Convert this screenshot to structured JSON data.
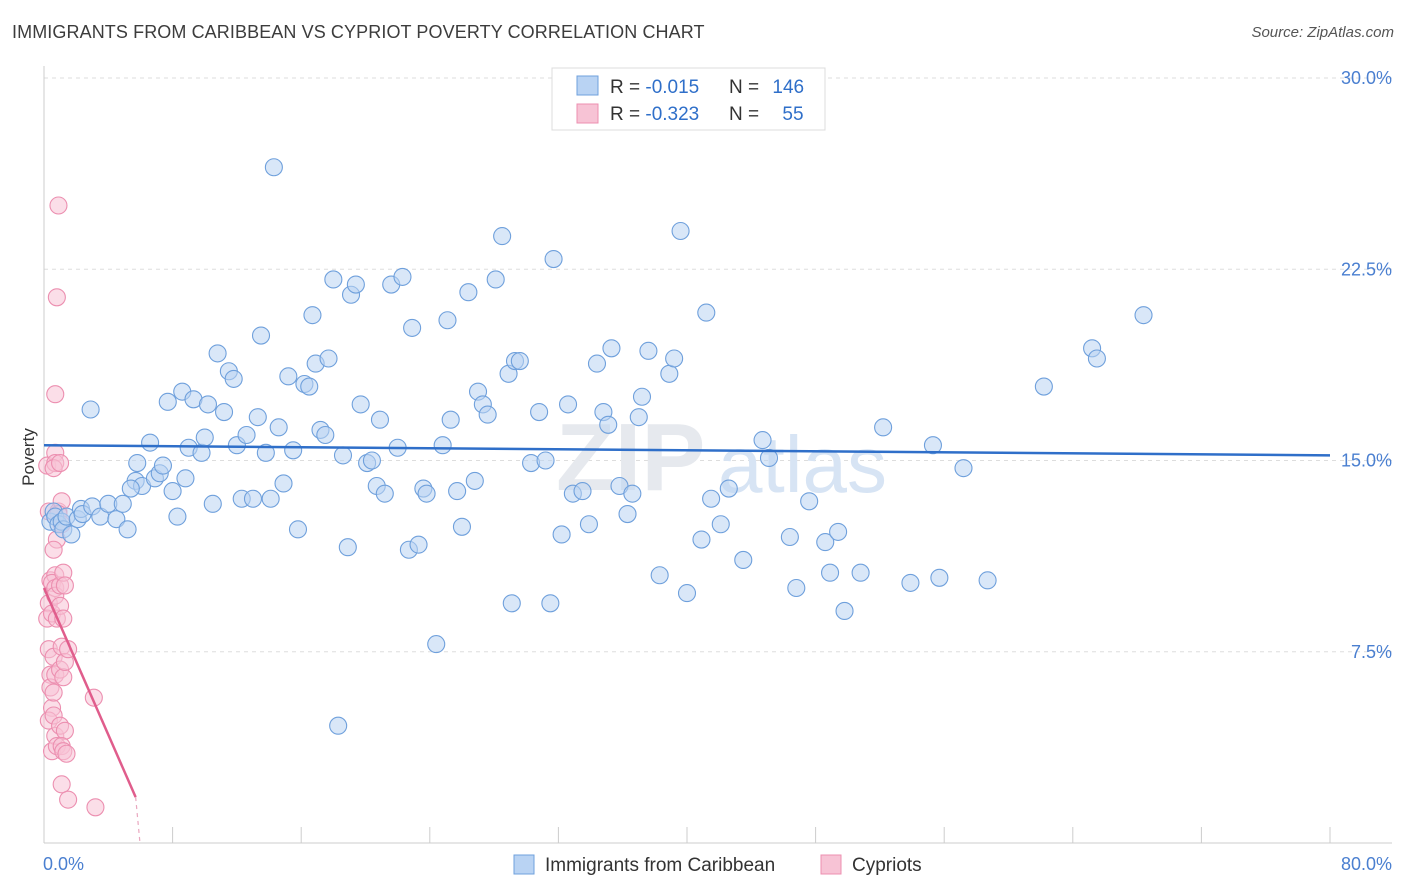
{
  "title": "IMMIGRANTS FROM CARIBBEAN VS CYPRIOT POVERTY CORRELATION CHART",
  "source": "Source: ZipAtlas.com",
  "watermark": {
    "zip": "ZIP",
    "atlas": "atlas"
  },
  "colors": {
    "blue": "#6fa0dc",
    "blue_fill": "#b9d3f3",
    "blue_line": "#2f6fc9",
    "pink": "#ec8fb0",
    "pink_fill": "#f7c3d5",
    "pink_line": "#e05d8c",
    "axis_text": "#4a7fd0"
  },
  "legend": {
    "rows": [
      {
        "r_label": "R = ",
        "r_value": "-0.015",
        "n_label": "N = ",
        "n_value": "146"
      },
      {
        "r_label": "R = ",
        "r_value": "-0.323",
        "n_label": "N = ",
        "n_value": "55"
      }
    ]
  },
  "chart_data": {
    "type": "scatter",
    "xlabel": "",
    "ylabel": "Poverty",
    "xlim": [
      0,
      80
    ],
    "ylim": [
      0,
      30
    ],
    "x_tick_labels": [
      "0.0%",
      "80.0%"
    ],
    "y_ticks": [
      7.5,
      15.0,
      22.5,
      30.0
    ],
    "y_tick_labels": [
      "7.5%",
      "15.0%",
      "22.5%",
      "30.0%"
    ],
    "grid": true,
    "legend_position": "bottom-center",
    "series": [
      {
        "name": "Immigrants from Caribbean",
        "trend": {
          "x": [
            0,
            80
          ],
          "y": [
            15.6,
            15.2
          ]
        },
        "points": [
          [
            0.4,
            12.6
          ],
          [
            0.6,
            13.0
          ],
          [
            0.7,
            12.8
          ],
          [
            0.9,
            12.5
          ],
          [
            1.1,
            12.6
          ],
          [
            1.2,
            12.3
          ],
          [
            1.4,
            12.8
          ],
          [
            1.7,
            12.1
          ],
          [
            2.1,
            12.7
          ],
          [
            2.3,
            13.1
          ],
          [
            2.4,
            12.9
          ],
          [
            3.0,
            13.2
          ],
          [
            3.5,
            12.8
          ],
          [
            2.9,
            17.0
          ],
          [
            4.0,
            13.3
          ],
          [
            4.5,
            12.7
          ],
          [
            4.9,
            13.3
          ],
          [
            5.2,
            12.3
          ],
          [
            5.7,
            14.2
          ],
          [
            5.8,
            14.9
          ],
          [
            6.1,
            14.0
          ],
          [
            6.6,
            15.7
          ],
          [
            6.9,
            14.3
          ],
          [
            7.2,
            14.5
          ],
          [
            7.4,
            14.8
          ],
          [
            5.4,
            13.9
          ],
          [
            8.0,
            13.8
          ],
          [
            7.7,
            17.3
          ],
          [
            8.3,
            12.8
          ],
          [
            8.6,
            17.7
          ],
          [
            8.8,
            14.3
          ],
          [
            9.0,
            15.5
          ],
          [
            9.3,
            17.4
          ],
          [
            9.8,
            15.3
          ],
          [
            10.0,
            15.9
          ],
          [
            10.2,
            17.2
          ],
          [
            10.5,
            13.3
          ],
          [
            10.8,
            19.2
          ],
          [
            11.2,
            16.9
          ],
          [
            11.5,
            18.5
          ],
          [
            11.8,
            18.2
          ],
          [
            12.0,
            15.6
          ],
          [
            12.3,
            13.5
          ],
          [
            12.6,
            16.0
          ],
          [
            13.0,
            13.5
          ],
          [
            13.3,
            16.7
          ],
          [
            13.5,
            19.9
          ],
          [
            13.8,
            15.3
          ],
          [
            14.1,
            13.5
          ],
          [
            14.3,
            26.5
          ],
          [
            14.6,
            16.3
          ],
          [
            14.9,
            14.1
          ],
          [
            15.2,
            18.3
          ],
          [
            15.5,
            15.4
          ],
          [
            15.8,
            12.3
          ],
          [
            16.2,
            18.0
          ],
          [
            16.5,
            17.9
          ],
          [
            16.7,
            20.7
          ],
          [
            16.9,
            18.8
          ],
          [
            17.2,
            16.2
          ],
          [
            17.5,
            16.0
          ],
          [
            17.7,
            19.0
          ],
          [
            18.0,
            22.1
          ],
          [
            18.3,
            4.6
          ],
          [
            18.6,
            15.2
          ],
          [
            18.9,
            11.6
          ],
          [
            19.1,
            21.5
          ],
          [
            19.4,
            21.9
          ],
          [
            19.7,
            17.2
          ],
          [
            20.1,
            14.9
          ],
          [
            20.4,
            15.0
          ],
          [
            20.7,
            14.0
          ],
          [
            20.9,
            16.6
          ],
          [
            21.2,
            13.7
          ],
          [
            21.6,
            21.9
          ],
          [
            22.0,
            15.5
          ],
          [
            22.3,
            22.2
          ],
          [
            22.7,
            11.5
          ],
          [
            22.9,
            20.2
          ],
          [
            23.3,
            11.7
          ],
          [
            23.6,
            13.9
          ],
          [
            23.8,
            13.7
          ],
          [
            24.4,
            7.8
          ],
          [
            24.8,
            15.6
          ],
          [
            25.1,
            20.5
          ],
          [
            25.3,
            16.6
          ],
          [
            25.7,
            13.8
          ],
          [
            26.0,
            12.4
          ],
          [
            26.4,
            21.6
          ],
          [
            26.8,
            14.2
          ],
          [
            27.0,
            17.7
          ],
          [
            27.3,
            17.2
          ],
          [
            27.6,
            16.8
          ],
          [
            28.1,
            22.1
          ],
          [
            28.5,
            23.8
          ],
          [
            28.9,
            18.4
          ],
          [
            29.1,
            9.4
          ],
          [
            29.3,
            18.9
          ],
          [
            29.6,
            18.9
          ],
          [
            30.3,
            14.9
          ],
          [
            30.8,
            16.9
          ],
          [
            31.2,
            15.0
          ],
          [
            31.5,
            9.4
          ],
          [
            31.7,
            22.9
          ],
          [
            32.2,
            12.1
          ],
          [
            32.6,
            17.2
          ],
          [
            32.9,
            13.7
          ],
          [
            33.5,
            13.8
          ],
          [
            33.9,
            12.5
          ],
          [
            34.4,
            18.8
          ],
          [
            34.8,
            16.9
          ],
          [
            35.1,
            16.4
          ],
          [
            35.3,
            19.4
          ],
          [
            35.8,
            14.0
          ],
          [
            36.3,
            12.9
          ],
          [
            36.6,
            13.7
          ],
          [
            37.0,
            16.7
          ],
          [
            37.2,
            17.5
          ],
          [
            37.6,
            19.3
          ],
          [
            38.3,
            10.5
          ],
          [
            38.9,
            18.4
          ],
          [
            39.2,
            19.0
          ],
          [
            39.6,
            24.0
          ],
          [
            40.0,
            9.8
          ],
          [
            40.9,
            11.9
          ],
          [
            41.2,
            20.8
          ],
          [
            41.5,
            13.5
          ],
          [
            42.1,
            12.5
          ],
          [
            42.6,
            13.9
          ],
          [
            43.5,
            11.1
          ],
          [
            44.7,
            15.8
          ],
          [
            45.1,
            15.1
          ],
          [
            46.4,
            12.0
          ],
          [
            46.8,
            10.0
          ],
          [
            47.6,
            13.4
          ],
          [
            48.6,
            11.8
          ],
          [
            48.9,
            10.6
          ],
          [
            49.4,
            12.2
          ],
          [
            49.8,
            9.1
          ],
          [
            50.8,
            10.6
          ],
          [
            52.2,
            16.3
          ],
          [
            53.9,
            10.2
          ],
          [
            55.3,
            15.6
          ],
          [
            55.7,
            10.4
          ],
          [
            57.2,
            14.7
          ],
          [
            58.7,
            10.3
          ],
          [
            62.2,
            17.9
          ],
          [
            65.2,
            19.4
          ],
          [
            65.5,
            19.0
          ],
          [
            68.4,
            20.7
          ]
        ]
      },
      {
        "name": "Cypriots",
        "trend": {
          "x": [
            0.0,
            5.7
          ],
          "y": [
            10.0,
            1.8
          ]
        },
        "trend_extension": {
          "x": [
            5.7,
            5.1
          ],
          "y": [
            1.8,
            0.0
          ]
        },
        "points": [
          [
            0.2,
            14.8
          ],
          [
            0.3,
            13.0
          ],
          [
            0.4,
            10.3
          ],
          [
            0.3,
            9.4
          ],
          [
            0.2,
            8.8
          ],
          [
            0.3,
            7.6
          ],
          [
            0.4,
            6.6
          ],
          [
            0.4,
            6.1
          ],
          [
            0.5,
            5.3
          ],
          [
            0.3,
            4.8
          ],
          [
            0.5,
            3.6
          ],
          [
            0.7,
            15.3
          ],
          [
            0.7,
            14.9
          ],
          [
            0.6,
            14.7
          ],
          [
            0.8,
            11.9
          ],
          [
            0.6,
            11.5
          ],
          [
            0.7,
            10.5
          ],
          [
            0.5,
            10.2
          ],
          [
            0.7,
            10.0
          ],
          [
            0.7,
            9.7
          ],
          [
            0.5,
            9.0
          ],
          [
            0.8,
            8.8
          ],
          [
            0.6,
            7.3
          ],
          [
            0.7,
            6.6
          ],
          [
            0.6,
            5.9
          ],
          [
            0.6,
            5.0
          ],
          [
            0.7,
            4.2
          ],
          [
            0.8,
            3.8
          ],
          [
            0.9,
            25.0
          ],
          [
            0.8,
            21.4
          ],
          [
            0.7,
            17.6
          ],
          [
            1.0,
            14.9
          ],
          [
            0.9,
            13.0
          ],
          [
            1.1,
            13.4
          ],
          [
            0.9,
            12.9
          ],
          [
            1.1,
            12.5
          ],
          [
            1.0,
            10.1
          ],
          [
            1.2,
            10.6
          ],
          [
            1.3,
            10.1
          ],
          [
            1.0,
            9.3
          ],
          [
            1.2,
            8.8
          ],
          [
            1.1,
            7.7
          ],
          [
            1.0,
            6.8
          ],
          [
            1.2,
            6.5
          ],
          [
            1.3,
            7.1
          ],
          [
            1.0,
            4.6
          ],
          [
            1.3,
            4.4
          ],
          [
            1.1,
            3.8
          ],
          [
            1.2,
            3.6
          ],
          [
            1.1,
            2.3
          ],
          [
            1.5,
            1.7
          ],
          [
            1.4,
            3.5
          ],
          [
            1.5,
            7.6
          ],
          [
            3.1,
            5.7
          ],
          [
            3.2,
            1.4
          ]
        ]
      }
    ]
  }
}
